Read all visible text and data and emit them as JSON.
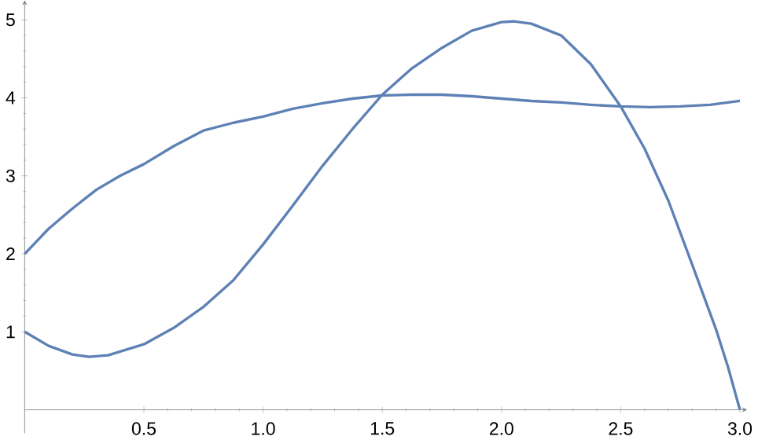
{
  "chart_data": {
    "type": "line",
    "x": [
      0,
      0.1,
      0.2,
      0.3,
      0.4,
      0.5,
      0.625,
      0.75,
      0.875,
      1.0,
      1.125,
      1.25,
      1.375,
      1.5,
      1.625,
      1.75,
      1.875,
      2.0,
      2.125,
      2.25,
      2.375,
      2.5,
      2.625,
      2.75,
      2.875,
      3.0
    ],
    "series": [
      {
        "color": "#5e81b5",
        "values": [
          2,
          2.32,
          2.58,
          2.82,
          3.0,
          3.15,
          3.38,
          3.58,
          3.68,
          3.76,
          3.86,
          3.93,
          3.99,
          4.03,
          4.04,
          4.04,
          4.02,
          3.99,
          3.96,
          3.94,
          3.91,
          3.89,
          3.88,
          3.89,
          3.91,
          3.96
        ]
      },
      {
        "color": "#5e81b5",
        "x": [
          0,
          0.1,
          0.2,
          0.27,
          0.35,
          0.5,
          0.625,
          0.75,
          0.875,
          1.0,
          1.125,
          1.25,
          1.375,
          1.5,
          1.625,
          1.75,
          1.875,
          2.0,
          2.05,
          2.125,
          2.25,
          2.375,
          2.5,
          2.6,
          2.7,
          2.8,
          2.9,
          2.95,
          3.0
        ],
        "values": [
          1,
          0.82,
          0.71,
          0.68,
          0.7,
          0.84,
          1.05,
          1.32,
          1.66,
          2.12,
          2.62,
          3.13,
          3.6,
          4.04,
          4.38,
          4.64,
          4.86,
          4.97,
          4.98,
          4.95,
          4.8,
          4.43,
          3.89,
          3.35,
          2.68,
          1.86,
          1.03,
          0.55,
          0
        ]
      }
    ],
    "xlim": [
      0,
      3.03
    ],
    "ylim": [
      -0.3,
      5.25
    ],
    "xticks": [
      0.5,
      {
        "value": 1,
        "label": "1.0"
      },
      1.5,
      {
        "value": 2,
        "label": "2.0"
      },
      2.5,
      {
        "value": 3,
        "label": "3.0"
      }
    ],
    "yticks": [
      1,
      2,
      3,
      4,
      5
    ],
    "grid": false,
    "legend": false,
    "marker": "none",
    "line_style": "solid"
  }
}
